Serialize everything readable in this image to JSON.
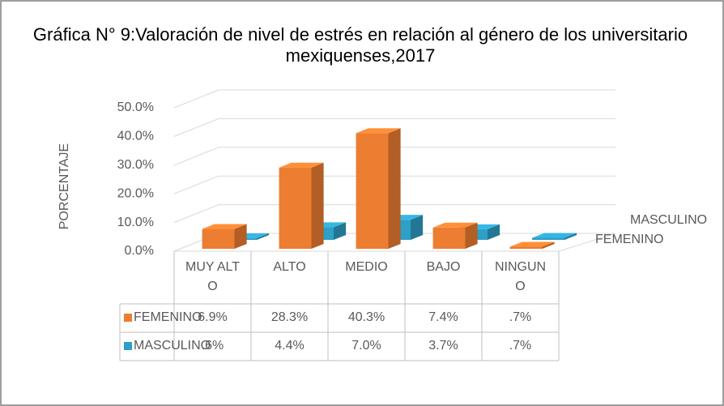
{
  "chart_data": {
    "type": "bar",
    "title": "Gráfica  N° 9:Valoración de nivel de estrés en relación al género de los universitario mexiquenses,2017",
    "y_label": "PORCENTAJE",
    "categories": [
      "MUY ALTO",
      "ALTO",
      "MEDIO",
      "BAJO",
      "NINGUNO"
    ],
    "series": [
      {
        "name": "FEMENINO",
        "color": "#ED7D31",
        "values": [
          6.9,
          28.3,
          40.3,
          7.4,
          0.7
        ],
        "value_labels": [
          "6.9%",
          "28.3%",
          "40.3%",
          "7.4%",
          ".7%"
        ]
      },
      {
        "name": "MASCULINO",
        "color": "#2E9FC6",
        "values": [
          0.6,
          4.4,
          7.0,
          3.7,
          0.7
        ],
        "value_labels": [
          ".6%",
          "4.4%",
          "7.0%",
          "3.7%",
          ".7%"
        ]
      }
    ],
    "ylim": [
      0,
      50
    ],
    "yticks": [
      {
        "value": 0,
        "label": "0.0%"
      },
      {
        "value": 10,
        "label": "10.0%"
      },
      {
        "value": 20,
        "label": "20.0%"
      },
      {
        "value": 30,
        "label": "30.0%"
      },
      {
        "value": 40,
        "label": "40.0%"
      },
      {
        "value": 50,
        "label": "50.0%"
      }
    ],
    "grid": true
  }
}
